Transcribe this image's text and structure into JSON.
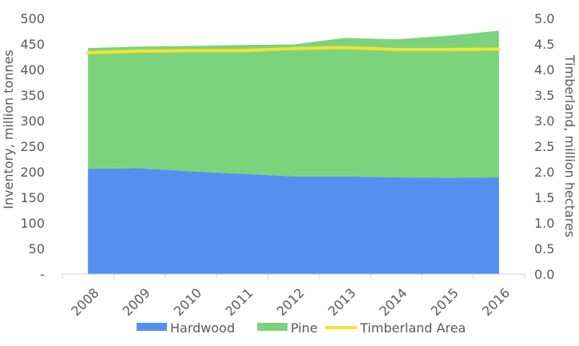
{
  "chart_data": {
    "type": "area",
    "categories": [
      "2008",
      "2009",
      "2010",
      "2011",
      "2012",
      "2013",
      "2014",
      "2015",
      "2016"
    ],
    "series": [
      {
        "name": "Hardwood",
        "type": "stacked-area",
        "axis": "left",
        "color": "#5590f0",
        "values": [
          206,
          207,
          201,
          196,
          191,
          191,
          189,
          188,
          189
        ]
      },
      {
        "name": "Pine",
        "type": "stacked-area",
        "axis": "left",
        "color": "#7bd47b",
        "values": [
          236,
          238,
          245,
          252,
          258,
          271,
          270,
          278,
          287
        ]
      },
      {
        "name": "Timberland Area",
        "type": "line",
        "axis": "right",
        "color": "#f5e236",
        "values": [
          4.33,
          4.36,
          4.37,
          4.37,
          4.41,
          4.43,
          4.39,
          4.39,
          4.4
        ]
      }
    ],
    "y_left": {
      "label": "Inventory, million tonnes",
      "range": [
        0,
        500
      ],
      "ticks": [
        "-",
        "50",
        "100",
        "150",
        "200",
        "250",
        "300",
        "350",
        "400",
        "450",
        "500"
      ]
    },
    "y_right": {
      "label": "Timberland, million hectares",
      "range": [
        0,
        5
      ],
      "ticks": [
        "0.0",
        "0.5",
        "1.0",
        "1.5",
        "2.0",
        "2.5",
        "3.0",
        "3.5",
        "4.0",
        "4.5",
        "5.0"
      ]
    },
    "legend": {
      "position": "bottom",
      "entries": [
        "Hardwood",
        "Pine",
        "Timberland Area"
      ]
    },
    "grid": false
  }
}
